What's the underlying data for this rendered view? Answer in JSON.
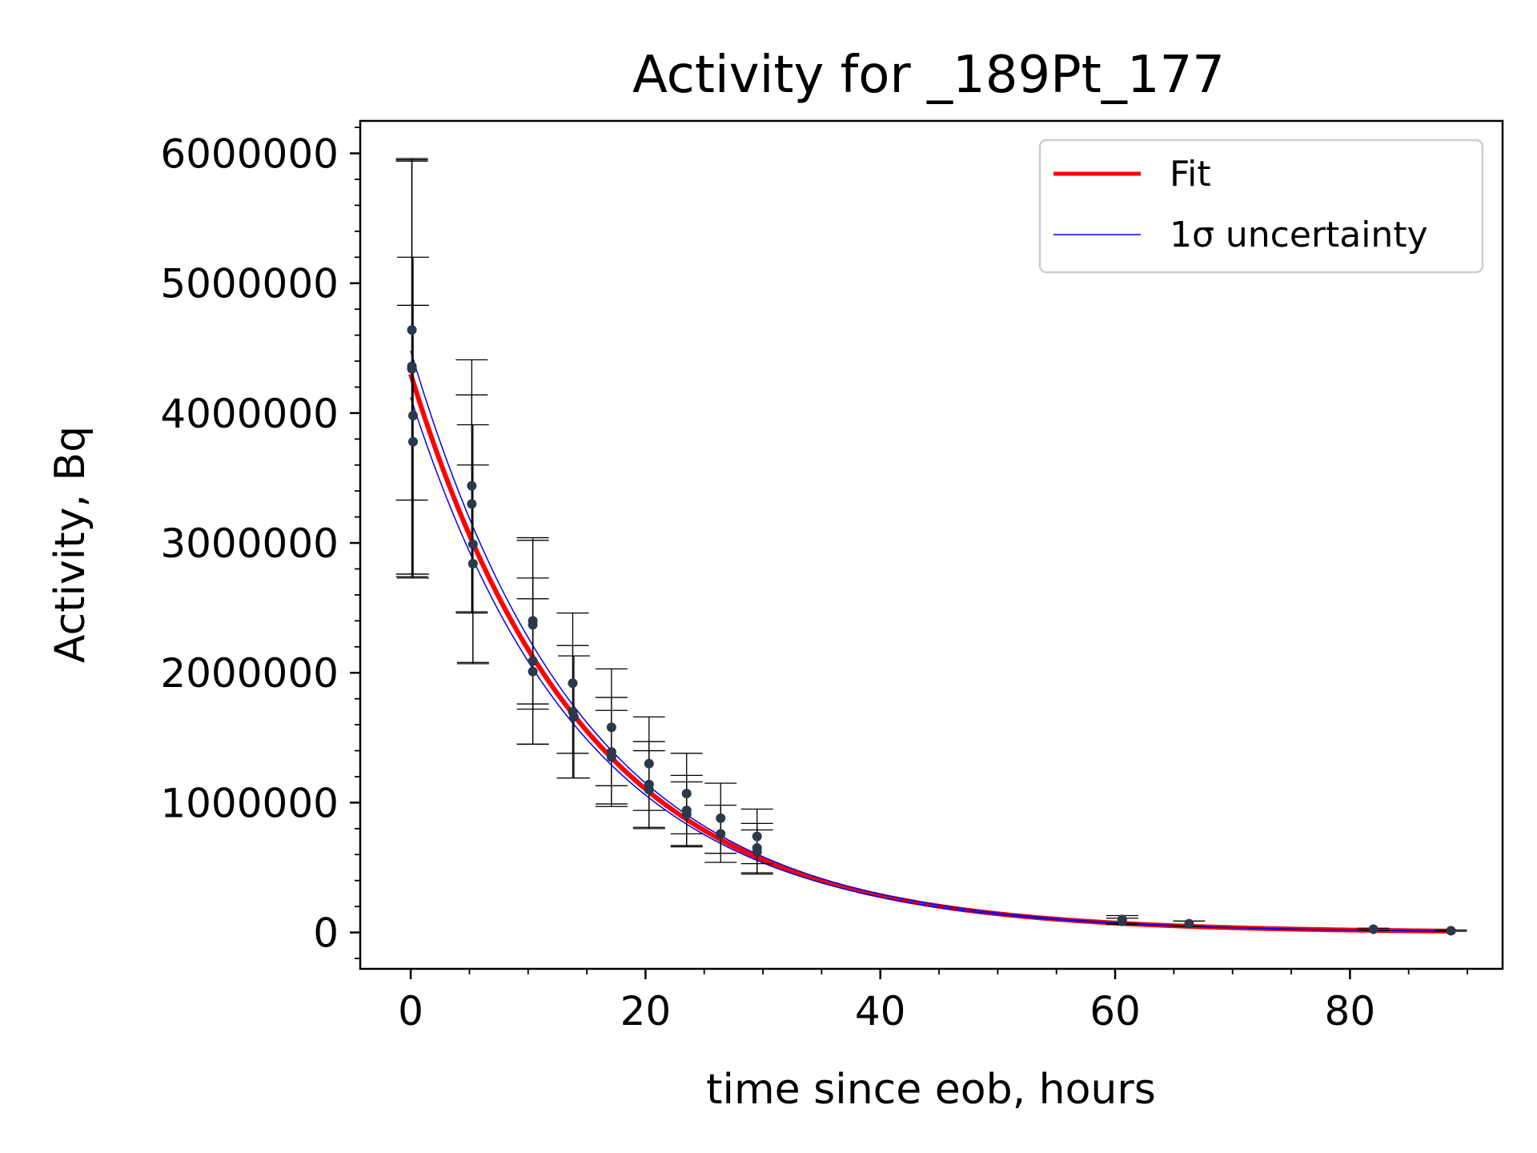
{
  "chart_data": {
    "type": "scatter",
    "title": "Activity for _189Pt_177",
    "xlabel": "time since eob, hours",
    "ylabel": "Activity, Bq",
    "xlim": [
      -4.3,
      93
    ],
    "ylim": [
      -280000,
      6250000
    ],
    "x_ticks": [
      0,
      20,
      40,
      60,
      80
    ],
    "x_tick_labels": [
      "0",
      "20",
      "40",
      "60",
      "80"
    ],
    "y_ticks": [
      0,
      1000000,
      2000000,
      3000000,
      4000000,
      5000000,
      6000000
    ],
    "y_tick_labels": [
      "0",
      "1000000",
      "2000000",
      "3000000",
      "4000000",
      "5000000",
      "6000000"
    ],
    "grid": false,
    "legend": {
      "position": "top-right",
      "entries": [
        {
          "label": "Fit",
          "color": "#ff0000"
        },
        {
          "label": "1σ uncertainty",
          "color": "#0000ee"
        }
      ]
    },
    "fit": {
      "x_range": [
        0,
        89
      ],
      "a0": 4300000,
      "half_life_hours": 10.2,
      "lower_a0": 4120000,
      "upper_a0": 4480000,
      "color": "#ff0000",
      "band_color": "#0000ee"
    },
    "points": [
      {
        "x": 0.1,
        "y": 4640000,
        "err": 1310000
      },
      {
        "x": 0.1,
        "y": 4360000,
        "err": 1600000
      },
      {
        "x": 0.1,
        "y": 4340000,
        "err": 1600000
      },
      {
        "x": 0.2,
        "y": 3980000,
        "err": 1220000
      },
      {
        "x": 0.2,
        "y": 3780000,
        "err": 1050000
      },
      {
        "x": 5.2,
        "y": 3440000,
        "err": 970000
      },
      {
        "x": 5.2,
        "y": 3300000,
        "err": 840000
      },
      {
        "x": 5.3,
        "y": 2990000,
        "err": 920000
      },
      {
        "x": 5.3,
        "y": 2840000,
        "err": 760000
      },
      {
        "x": 10.4,
        "y": 2400000,
        "err": 640000
      },
      {
        "x": 10.4,
        "y": 2370000,
        "err": 650000
      },
      {
        "x": 10.4,
        "y": 2090000,
        "err": 640000
      },
      {
        "x": 10.4,
        "y": 2010000,
        "err": 560000
      },
      {
        "x": 13.8,
        "y": 1920000,
        "err": 540000
      },
      {
        "x": 13.8,
        "y": 1700000,
        "err": 510000
      },
      {
        "x": 13.9,
        "y": 1660000,
        "err": 470000
      },
      {
        "x": 17.1,
        "y": 1580000,
        "err": 450000
      },
      {
        "x": 17.1,
        "y": 1390000,
        "err": 420000
      },
      {
        "x": 17.1,
        "y": 1350000,
        "err": 360000
      },
      {
        "x": 20.3,
        "y": 1300000,
        "err": 360000
      },
      {
        "x": 20.3,
        "y": 1140000,
        "err": 330000
      },
      {
        "x": 20.3,
        "y": 1100000,
        "err": 300000
      },
      {
        "x": 23.5,
        "y": 1070000,
        "err": 310000
      },
      {
        "x": 23.5,
        "y": 940000,
        "err": 270000
      },
      {
        "x": 23.5,
        "y": 910000,
        "err": 250000
      },
      {
        "x": 26.4,
        "y": 880000,
        "err": 270000
      },
      {
        "x": 26.4,
        "y": 760000,
        "err": 220000
      },
      {
        "x": 29.5,
        "y": 740000,
        "err": 210000
      },
      {
        "x": 29.5,
        "y": 650000,
        "err": 190000
      },
      {
        "x": 29.5,
        "y": 620000,
        "err": 170000
      },
      {
        "x": 60.6,
        "y": 100000,
        "err": 30000
      },
      {
        "x": 60.6,
        "y": 85000,
        "err": 25000
      },
      {
        "x": 66.3,
        "y": 68000,
        "err": 20000
      },
      {
        "x": 82.0,
        "y": 25000,
        "err": 8000
      },
      {
        "x": 88.6,
        "y": 14000,
        "err": 5000
      }
    ],
    "marker_color": "#2b3a4a",
    "errorbar_color": "#000000"
  }
}
